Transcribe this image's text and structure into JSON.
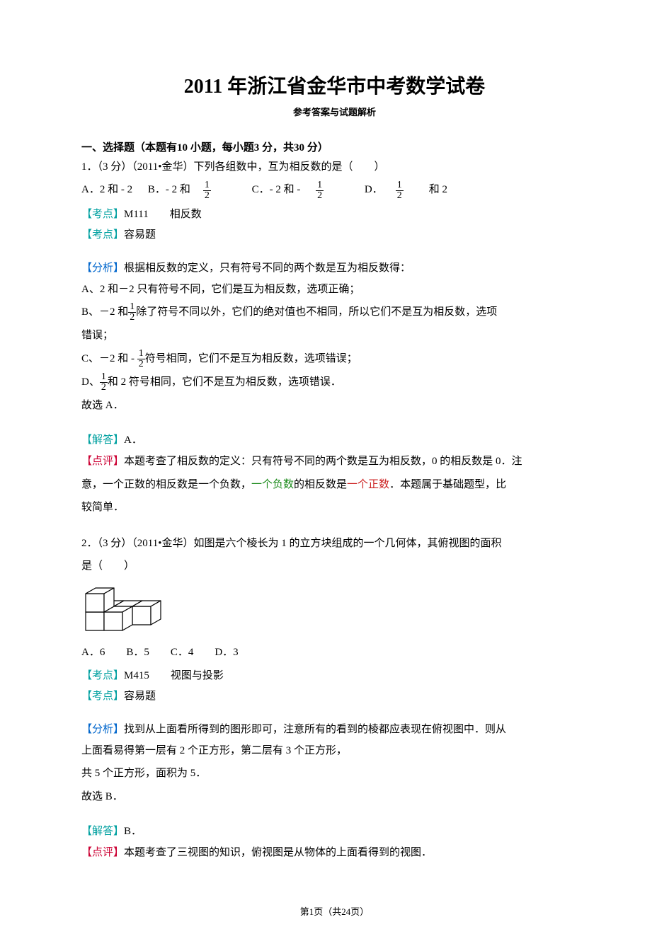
{
  "title": "2011 年浙江省金华市中考数学试卷",
  "subtitle": "参考答案与试题解析",
  "section_header": "一、选择题（本题有10 小题，每小题3 分，共30 分）",
  "q1": {
    "stem": "1．（3 分）（2011•金华）下列各组数中，互为相反数的是（　　）",
    "opt_a_pre": "A．2 和 - 2",
    "opt_b_pre": "B．- 2 和",
    "opt_c_pre": "C．- 2 和 -",
    "opt_d_pre": "D．",
    "opt_d_post": "和 2",
    "kaodian_label": "【考点】",
    "kaodian_value": "M111　　相反数",
    "nandu_label": "【考点】",
    "nandu_value": "容易题",
    "fenxi_label": "【分析】",
    "fenxi_text": "根据相反数的定义，只有符号不同的两个数是互为相反数得：",
    "line_a": "A、2 和－2 只有符号不同，它们是互为相反数，选项正确；",
    "line_b_pre": "B、－2 和",
    "line_b_post": "除了符号不同以外，它们的绝对值也不相同，所以它们不是互为相反数，选项",
    "line_b_tail": "错误；",
    "line_c_pre": "C、－2 和 -",
    "line_c_post": "符号相同，它们不是互为相反数，选项错误；",
    "line_d_pre": "D、",
    "line_d_post": "和 2 符号相同，它们不是互为相反数，选项错误．",
    "conclusion": "故选 A．",
    "jieda_label": "【解答】",
    "jieda_value": "A．",
    "dianping_label": "【点评】",
    "dianping_text_1": "本题考查了相反数的定义：只有符号不同的两个数是互为相反数，0 的相反数是 0．注",
    "dianping_text_2_a": "意，一个正数的相反数是一个负数，",
    "dianping_green": "一个负数",
    "dianping_text_2_b": "的相反数是",
    "dianping_red": "一个正数",
    "dianping_text_2_c": "．本题属于基础题型，比",
    "dianping_text_3": "较简单．",
    "frac_num": "1",
    "frac_den": "2"
  },
  "q2": {
    "stem_1": "2．（3 分）（2011•金华）如图是六个棱长为 1 的立方块组成的一个几何体，其俯视图的面积",
    "stem_2": "是（　　）",
    "options": "A．6　　B．5　　C．4　　D．3",
    "kaodian_label": "【考点】",
    "kaodian_value": "M415　　视图与投影",
    "nandu_label": "【考点】",
    "nandu_value": "容易题",
    "fenxi_label": "【分析】",
    "fenxi_text_1": "找到从上面看所得到的图形即可，注意所有的看到的棱都应表现在俯视图中．则从",
    "fenxi_text_2": "上面看易得第一层有 2 个正方形，第二层有 3 个正方形，",
    "fenxi_text_3": "共 5 个正方形，面积为 5．",
    "conclusion": "故选 B．",
    "jieda_label": "【解答】",
    "jieda_value": "B．",
    "dianping_label": "【点评】",
    "dianping_text": "本题考查了三视图的知识，俯视图是从物体的上面看得到的视图．"
  },
  "footer": "第1页（共24页）",
  "figure": {
    "stroke": "#000000",
    "bg": "#ffffff",
    "stroke_width": 1.2,
    "width": 130,
    "height": 78
  }
}
